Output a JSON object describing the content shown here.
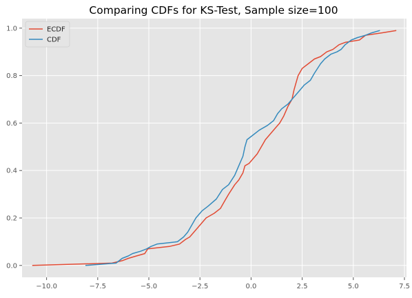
{
  "chart_data": {
    "type": "line",
    "title": "Comparing CDFs for KS-Test, Sample size=100",
    "xlabel": "",
    "ylabel": "",
    "xlim": [
      -11.2,
      7.6
    ],
    "ylim": [
      -0.05,
      1.04
    ],
    "xticks": [
      -10.0,
      -7.5,
      -5.0,
      -2.5,
      0.0,
      2.5,
      5.0,
      7.5
    ],
    "xtick_labels": [
      "−10.0",
      "−7.5",
      "−5.0",
      "−2.5",
      "0.0",
      "2.5",
      "5.0",
      "7.5"
    ],
    "yticks": [
      0.0,
      0.2,
      0.4,
      0.6,
      0.8,
      1.0
    ],
    "ytick_labels": [
      "0.0",
      "0.2",
      "0.4",
      "0.6",
      "0.8",
      "1.0"
    ],
    "grid": true,
    "legend_position": "top-left",
    "series": [
      {
        "name": "ECDF",
        "color": "#e24a33",
        "points": [
          [
            -10.7,
            0.0
          ],
          [
            -6.8,
            0.01
          ],
          [
            -6.3,
            0.02
          ],
          [
            -6.0,
            0.03
          ],
          [
            -5.6,
            0.04
          ],
          [
            -5.2,
            0.05
          ],
          [
            -5.05,
            0.07
          ],
          [
            -4.0,
            0.08
          ],
          [
            -3.5,
            0.09
          ],
          [
            -3.2,
            0.11
          ],
          [
            -3.0,
            0.12
          ],
          [
            -2.6,
            0.16
          ],
          [
            -2.2,
            0.2
          ],
          [
            -1.8,
            0.22
          ],
          [
            -1.5,
            0.24
          ],
          [
            -1.3,
            0.27
          ],
          [
            -1.1,
            0.3
          ],
          [
            -0.8,
            0.34
          ],
          [
            -0.6,
            0.36
          ],
          [
            -0.4,
            0.39
          ],
          [
            -0.3,
            0.42
          ],
          [
            -0.1,
            0.43
          ],
          [
            0.1,
            0.45
          ],
          [
            0.3,
            0.47
          ],
          [
            0.5,
            0.5
          ],
          [
            0.7,
            0.53
          ],
          [
            1.0,
            0.56
          ],
          [
            1.2,
            0.58
          ],
          [
            1.4,
            0.6
          ],
          [
            1.6,
            0.63
          ],
          [
            1.8,
            0.67
          ],
          [
            2.0,
            0.7
          ],
          [
            2.1,
            0.74
          ],
          [
            2.2,
            0.77
          ],
          [
            2.3,
            0.8
          ],
          [
            2.5,
            0.83
          ],
          [
            2.8,
            0.85
          ],
          [
            3.1,
            0.87
          ],
          [
            3.4,
            0.88
          ],
          [
            3.7,
            0.9
          ],
          [
            4.0,
            0.91
          ],
          [
            4.3,
            0.93
          ],
          [
            4.6,
            0.94
          ],
          [
            5.3,
            0.95
          ],
          [
            5.6,
            0.97
          ],
          [
            6.4,
            0.98
          ],
          [
            7.1,
            0.99
          ]
        ]
      },
      {
        "name": "CDF",
        "color": "#348abd",
        "points": [
          [
            -8.1,
            0.0
          ],
          [
            -6.6,
            0.01
          ],
          [
            -6.3,
            0.03
          ],
          [
            -6.0,
            0.04
          ],
          [
            -5.8,
            0.05
          ],
          [
            -5.4,
            0.06
          ],
          [
            -5.1,
            0.07
          ],
          [
            -4.9,
            0.08
          ],
          [
            -4.6,
            0.09
          ],
          [
            -3.6,
            0.1
          ],
          [
            -3.3,
            0.12
          ],
          [
            -3.1,
            0.14
          ],
          [
            -2.9,
            0.17
          ],
          [
            -2.7,
            0.2
          ],
          [
            -2.4,
            0.23
          ],
          [
            -2.1,
            0.25
          ],
          [
            -1.7,
            0.28
          ],
          [
            -1.4,
            0.32
          ],
          [
            -1.1,
            0.34
          ],
          [
            -0.8,
            0.38
          ],
          [
            -0.6,
            0.42
          ],
          [
            -0.4,
            0.46
          ],
          [
            -0.3,
            0.5
          ],
          [
            -0.2,
            0.53
          ],
          [
            0.1,
            0.55
          ],
          [
            0.4,
            0.57
          ],
          [
            0.8,
            0.59
          ],
          [
            1.1,
            0.61
          ],
          [
            1.3,
            0.64
          ],
          [
            1.5,
            0.66
          ],
          [
            1.8,
            0.68
          ],
          [
            2.0,
            0.7
          ],
          [
            2.3,
            0.73
          ],
          [
            2.6,
            0.76
          ],
          [
            2.9,
            0.78
          ],
          [
            3.1,
            0.81
          ],
          [
            3.4,
            0.85
          ],
          [
            3.6,
            0.87
          ],
          [
            3.9,
            0.89
          ],
          [
            4.2,
            0.9
          ],
          [
            4.4,
            0.91
          ],
          [
            4.6,
            0.93
          ],
          [
            4.9,
            0.95
          ],
          [
            5.2,
            0.96
          ],
          [
            5.6,
            0.97
          ],
          [
            5.9,
            0.98
          ],
          [
            6.3,
            0.99
          ]
        ]
      }
    ]
  }
}
